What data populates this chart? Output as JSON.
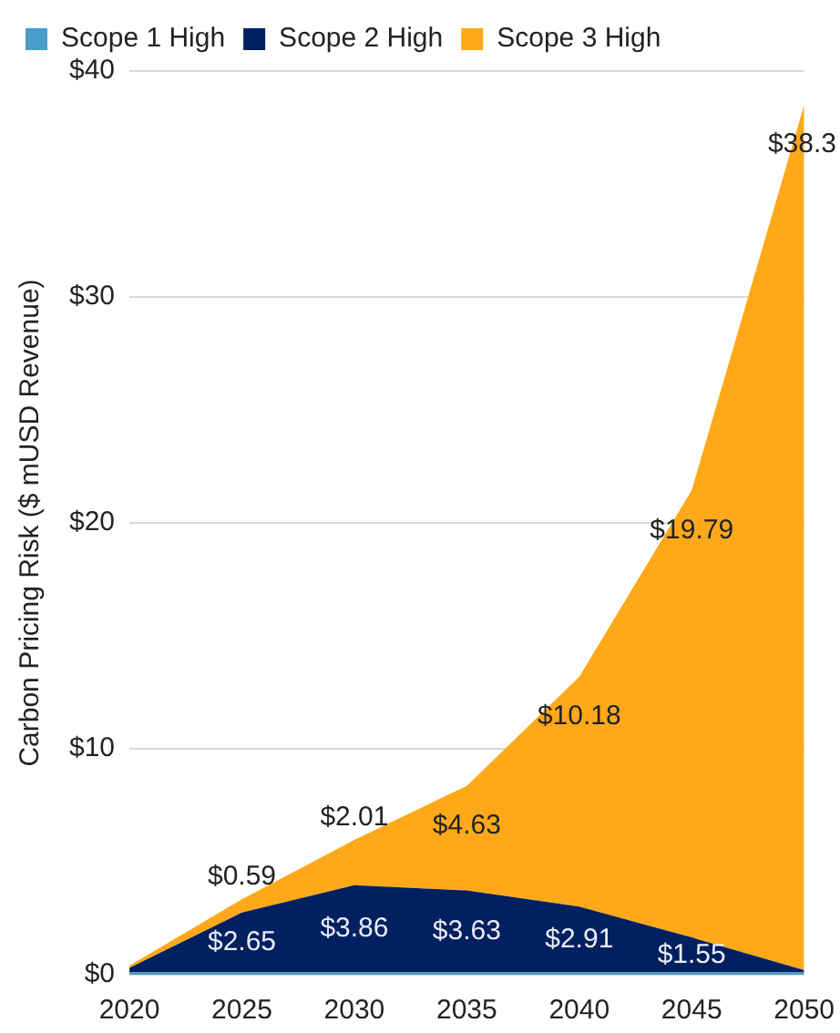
{
  "chart_data": {
    "type": "area",
    "stacked": true,
    "ylabel": "Carbon Pricing Risk ($ mUSD Revenue)",
    "categories": [
      "2020",
      "2025",
      "2030",
      "2035",
      "2040",
      "2045",
      "2050"
    ],
    "series": [
      {
        "name": "Scope 1 High",
        "color": "#4a9cc9",
        "values": [
          0.1,
          0.1,
          0.1,
          0.1,
          0.1,
          0.1,
          0.1
        ]
      },
      {
        "name": "Scope 2 High",
        "color": "#002060",
        "values": [
          0.2,
          2.65,
          3.86,
          3.63,
          2.91,
          1.55,
          0.1
        ],
        "value_labels": [
          null,
          "$2.65",
          "$3.86",
          "$3.63",
          "$2.91",
          "$1.55",
          null
        ]
      },
      {
        "name": "Scope 3 High",
        "color": "#ffa91a",
        "values": [
          0.1,
          0.59,
          2.01,
          4.63,
          10.18,
          19.79,
          38.3
        ],
        "value_labels": [
          null,
          "$0.59",
          "$2.01",
          "$4.63",
          "$10.18",
          "$19.79",
          "$38.3"
        ]
      }
    ],
    "ylim": [
      0,
      40
    ],
    "yticks": [
      {
        "value": 0,
        "label": "$0"
      },
      {
        "value": 10,
        "label": "$10"
      },
      {
        "value": 20,
        "label": "$20"
      },
      {
        "value": 30,
        "label": "$30"
      },
      {
        "value": 40,
        "label": "$40"
      }
    ],
    "grid": "y",
    "legend": "top"
  }
}
